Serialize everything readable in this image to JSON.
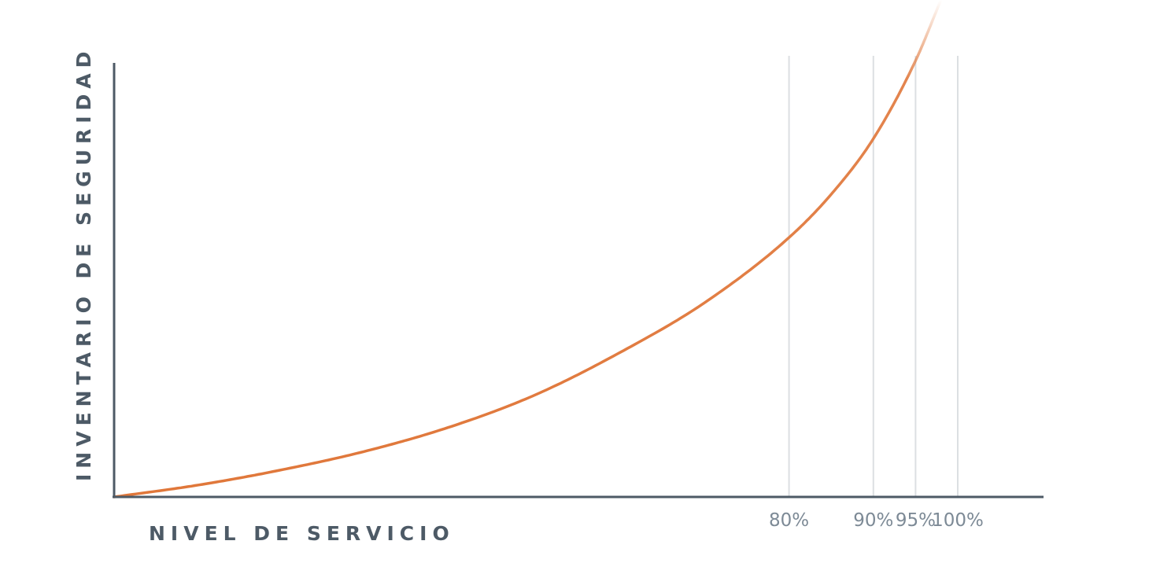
{
  "chart_data": {
    "type": "line",
    "title": "",
    "xlabel": "NIVEL DE SERVICIO",
    "ylabel": "INVENTARIO DE SEGURIDAD",
    "x_ticks": [
      {
        "value": 80,
        "label": "80%"
      },
      {
        "value": 90,
        "label": "90%"
      },
      {
        "value": 95,
        "label": "95%"
      },
      {
        "value": 100,
        "label": "100%"
      }
    ],
    "series": [
      {
        "x": [
          0,
          10,
          20,
          30,
          40,
          50,
          60,
          70,
          80,
          85,
          90,
          95,
          98
        ],
        "y": [
          0,
          2.4,
          5.5,
          9.3,
          14.2,
          20.6,
          29.1,
          39.1,
          52.2,
          60.9,
          72.1,
          87.8,
          100
        ]
      }
    ],
    "xlim": [
      0,
      108
    ],
    "ylim": [
      0,
      100
    ],
    "grid": "vertical lines at ticks",
    "legend": "none",
    "colors": {
      "curve": "#e0773a",
      "axis": "#4d5a66",
      "grid": "#dcdfe2",
      "axis_title": "#4d5a66",
      "tick_label": "#7d8a96"
    }
  }
}
